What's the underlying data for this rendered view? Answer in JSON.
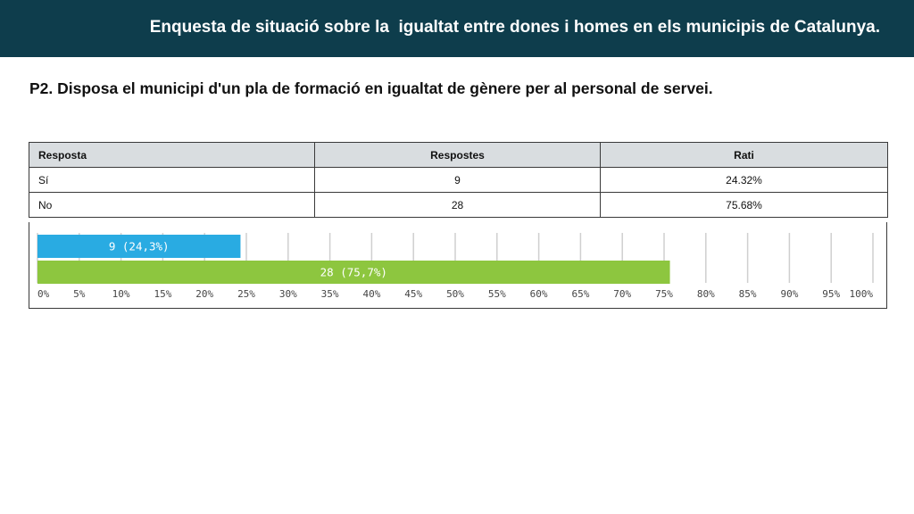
{
  "header": {
    "title": "Enquesta de situació sobre la  igualtat entre dones i homes en els municipis de Catalunya."
  },
  "question": "P2. Disposa el municipi d'un pla de formació en igualtat de gènere per al personal de servei.",
  "table": {
    "headers": [
      "Resposta",
      "Respostes",
      "Rati"
    ],
    "rows": [
      [
        "Sí",
        "9",
        "24.32%"
      ],
      [
        "No",
        "28",
        "75.68%"
      ]
    ]
  },
  "chart_data": {
    "type": "bar",
    "orientation": "horizontal",
    "categories": [
      "Sí",
      "No"
    ],
    "values": [
      24.3,
      75.7
    ],
    "bar_labels": [
      "9 (24,3%)",
      "28 (75,7%)"
    ],
    "colors": [
      "#29abe2",
      "#8dc63f"
    ],
    "xlim": [
      0,
      100
    ],
    "x_ticks": [
      0,
      5,
      10,
      15,
      20,
      25,
      30,
      35,
      40,
      45,
      50,
      55,
      60,
      65,
      70,
      75,
      80,
      85,
      90,
      95,
      100
    ],
    "x_tick_labels": [
      "0%",
      "5%",
      "10%",
      "15%",
      "20%",
      "25%",
      "30%",
      "35%",
      "40%",
      "45%",
      "50%",
      "55%",
      "60%",
      "65%",
      "70%",
      "75%",
      "80%",
      "85%",
      "90%",
      "95%",
      "100%"
    ],
    "grid": true
  }
}
